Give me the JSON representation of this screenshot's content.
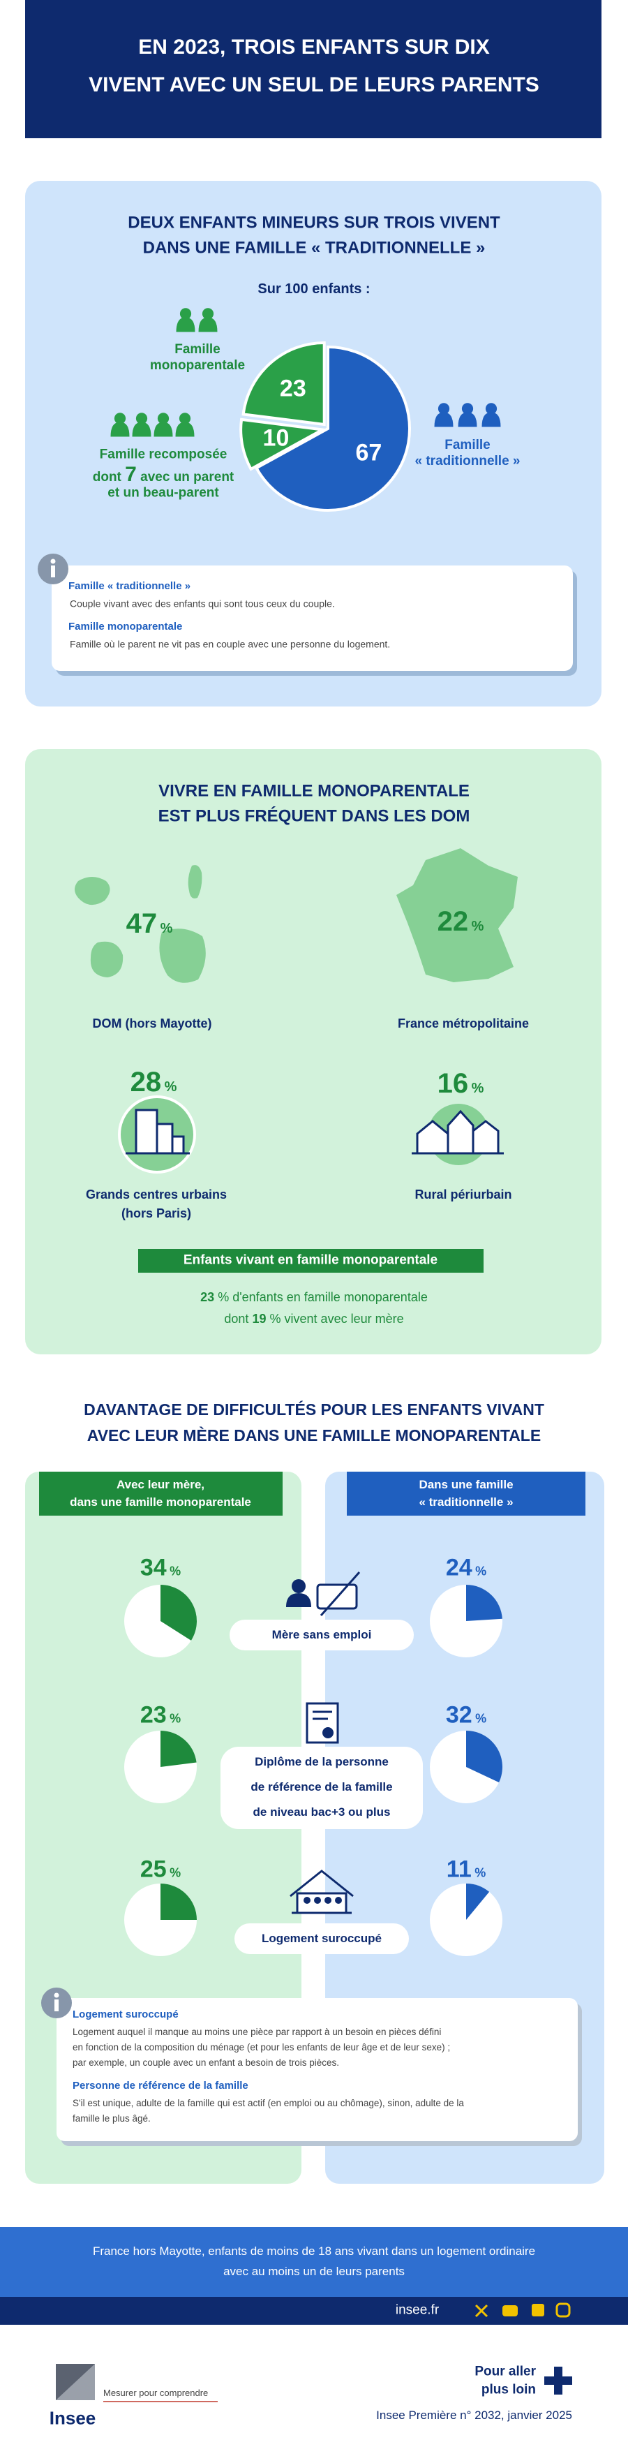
{
  "header": {
    "title_lines": [
      "EN 2023, TROIS ENFANTS SUR DIX",
      "VIVENT AVEC UN SEUL DE LEURS PARENTS"
    ]
  },
  "families": {
    "heading_lines": [
      "DEUX ENFANTS MINEURS SUR TROIS VIVENT",
      "DANS UNE FAMILLE « TRADITIONNELLE »"
    ],
    "recomposed_detail": {
      "prefix": "dont",
      "value": 7,
      "suffix_lines": [
        "avec un parent",
        "et un beau-parent"
      ]
    },
    "definitions": [
      {
        "term": "Famille « traditionnelle »",
        "text": "Couple vivant avec des enfants qui sont tous ceux du couple."
      },
      {
        "term": "Famille monoparentale",
        "text": "Famille où le parent ne vit pas en couple avec une personne du logement."
      }
    ]
  },
  "chart_data": {
    "type": "pie",
    "title": "Sur 100 enfants :",
    "categories": [
      "Famille « traditionnelle »",
      "Famille recomposée",
      "Famille monoparentale"
    ],
    "values": [
      67,
      10,
      23
    ],
    "colors": [
      "#1f5fbf",
      "#2aa048",
      "#2aa048"
    ]
  },
  "by_area": {
    "heading_lines": [
      "VIVRE EN FAMILLE MONOPARENTALE",
      "EST PLUS FRÉQUENT DANS LES DOM"
    ],
    "unit": "%",
    "areas": [
      {
        "value": 47,
        "label_lines": [
          "DOM (hors Mayotte)"
        ]
      },
      {
        "value": 22,
        "label_lines": [
          "France métropolitaine"
        ]
      },
      {
        "value": 28,
        "label_lines": [
          "Grands centres urbains",
          "(hors Paris)"
        ]
      },
      {
        "value": 16,
        "label_lines": [
          "Rural périurbain"
        ]
      }
    ],
    "banner": "Enfants vivant en famille monoparentale",
    "overall": {
      "value": 23,
      "text": "d'enfants en famille monoparentale"
    },
    "with_mother": {
      "prefix": "dont",
      "value": 19,
      "text": "vivent avec leur mère"
    }
  },
  "difficulties": {
    "heading_lines": [
      "DAVANTAGE DE DIFFICULTÉS POUR LES ENFANTS VIVANT",
      "AVEC LEUR MÈRE DANS UNE FAMILLE MONOPARENTALE"
    ],
    "unit": "%",
    "columns": [
      {
        "label_lines": [
          "Avec leur mère,",
          "dans une famille monoparentale"
        ],
        "color": "#1e8a3c"
      },
      {
        "label_lines": [
          "Dans une famille",
          "« traditionnelle »"
        ],
        "color": "#1f5fbf"
      }
    ],
    "rows": [
      {
        "label_lines": [
          "Mère sans emploi"
        ],
        "values": [
          34,
          24
        ]
      },
      {
        "label_lines": [
          "Diplôme de la personne",
          "de référence de la famille",
          "de niveau bac+3 ou plus"
        ],
        "values": [
          23,
          32
        ]
      },
      {
        "label_lines": [
          "Logement suroccupé"
        ],
        "values": [
          25,
          11
        ]
      }
    ],
    "definitions": [
      {
        "term": "Logement suroccupé",
        "text_lines": [
          "Logement auquel il manque au moins une pièce par rapport à un besoin en pièces défini",
          "en fonction de la composition du ménage (et pour les enfants de leur âge et de leur sexe) ;",
          "par exemple, un couple avec un enfant a besoin de trois pièces."
        ]
      },
      {
        "term": "Personne de référence de la famille",
        "text_lines": [
          "S'il est unique, adulte de la famille qui est actif (en emploi ou au chômage), sinon, adulte de la",
          "famille le plus âgé."
        ]
      }
    ]
  },
  "footer": {
    "scope_lines": [
      "France hors Mayotte, enfants de moins de 18 ans vivant dans un logement ordinaire",
      "avec au moins un de leurs parents"
    ],
    "site": "insee.fr",
    "logo": "Insee",
    "tagline": "Mesurer pour comprendre",
    "more_lines": [
      "Pour aller",
      "plus loin"
    ],
    "reference": "Insee Première n° 2032, janvier 2025"
  }
}
